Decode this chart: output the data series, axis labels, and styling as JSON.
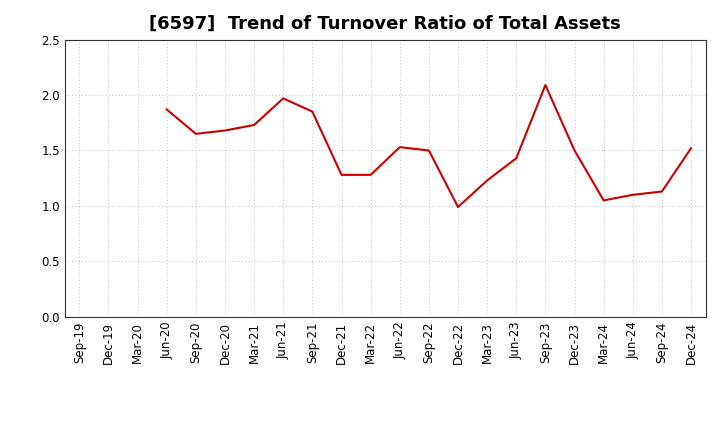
{
  "title": "[6597]  Trend of Turnover Ratio of Total Assets",
  "x_labels": [
    "Sep-19",
    "Dec-19",
    "Mar-20",
    "Jun-20",
    "Sep-20",
    "Dec-20",
    "Mar-21",
    "Jun-21",
    "Sep-21",
    "Dec-21",
    "Mar-22",
    "Jun-22",
    "Sep-22",
    "Dec-22",
    "Mar-23",
    "Jun-23",
    "Sep-23",
    "Dec-23",
    "Mar-24",
    "Jun-24",
    "Sep-24",
    "Dec-24"
  ],
  "data_x": [
    "Jun-20",
    "Sep-20",
    "Dec-20",
    "Mar-21",
    "Jun-21",
    "Sep-21",
    "Dec-21",
    "Mar-22",
    "Jun-22",
    "Sep-22",
    "Dec-22",
    "Mar-23",
    "Jun-23",
    "Sep-23",
    "Dec-23",
    "Mar-24",
    "Jun-24",
    "Sep-24",
    "Dec-24"
  ],
  "data_y": [
    1.87,
    1.65,
    1.68,
    1.73,
    1.97,
    1.85,
    1.28,
    1.28,
    1.53,
    1.5,
    0.99,
    1.23,
    1.43,
    2.09,
    1.5,
    1.05,
    1.1,
    1.13,
    1.52
  ],
  "line_color": "#cc0000",
  "line_width": 1.5,
  "ylim": [
    0.0,
    2.5
  ],
  "yticks": [
    0.0,
    0.5,
    1.0,
    1.5,
    2.0,
    2.5
  ],
  "background_color": "#ffffff",
  "grid_color": "#aaaaaa",
  "title_fontsize": 13,
  "tick_fontsize": 8.5
}
